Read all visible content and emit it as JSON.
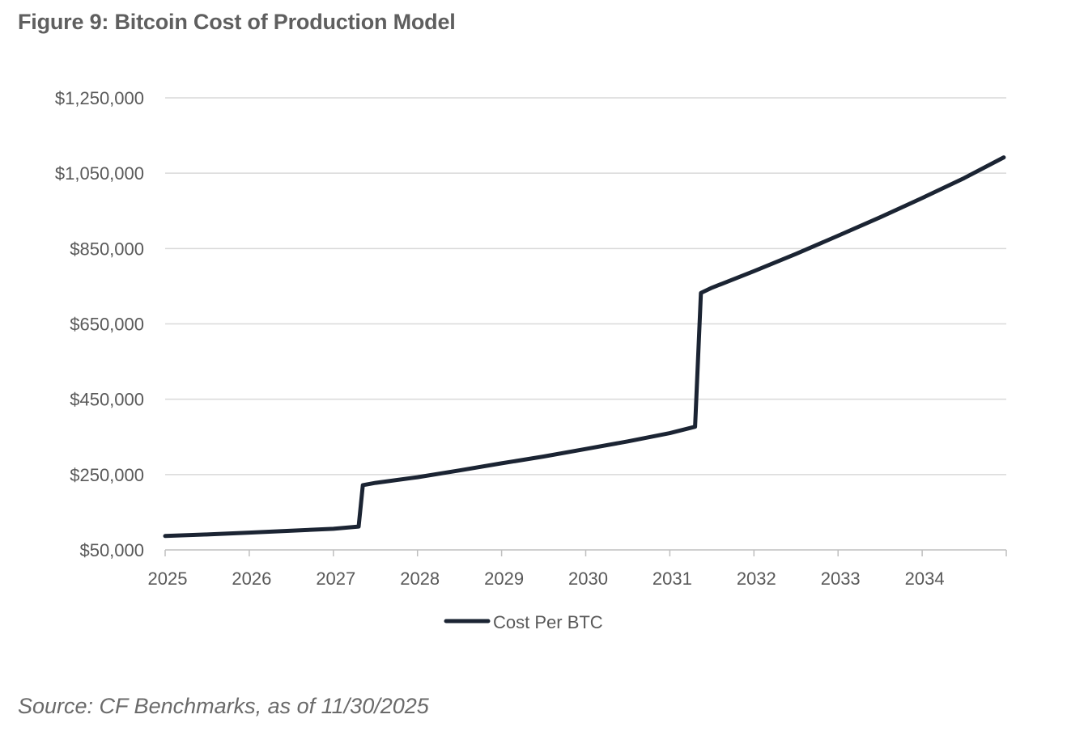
{
  "figure_title": "Figure 9: Bitcoin Cost of Production Model",
  "source": "Source: CF Benchmarks, as of 11/30/2025",
  "colors": {
    "line": "#1b2433",
    "grid": "#d9d9d9",
    "axis": "#bfbfbf",
    "title": "#5f5f5f",
    "text": "#595959"
  },
  "chart_data": {
    "type": "line",
    "title": "Figure 9: Bitcoin Cost of Production Model",
    "xlabel": "",
    "ylabel": "",
    "xlim": [
      2025,
      2035
    ],
    "ylim": [
      50000,
      1250000
    ],
    "y_ticks": [
      50000,
      250000,
      450000,
      650000,
      850000,
      1050000,
      1250000
    ],
    "y_tick_labels": [
      "$50,000",
      "$250,000",
      "$450,000",
      "$650,000",
      "$850,000",
      "$1,050,000",
      "$1,250,000"
    ],
    "x_ticks": [
      2025,
      2026,
      2027,
      2028,
      2029,
      2030,
      2031,
      2032,
      2033,
      2034
    ],
    "x_tick_labels": [
      "2025",
      "2026",
      "2027",
      "2028",
      "2029",
      "2030",
      "2031",
      "2032",
      "2033",
      "2034"
    ],
    "grid": "horizontal",
    "legend_position": "bottom-center",
    "series": [
      {
        "name": "Cost Per BTC",
        "x": [
          2025.0,
          2025.5,
          2026.0,
          2026.5,
          2027.0,
          2027.3,
          2027.35,
          2027.5,
          2028.0,
          2028.5,
          2029.0,
          2029.5,
          2030.0,
          2030.5,
          2031.0,
          2031.3,
          2031.37,
          2031.5,
          2032.0,
          2032.5,
          2033.0,
          2033.5,
          2034.0,
          2034.5,
          2034.97
        ],
        "values": [
          87000,
          91000,
          96000,
          101000,
          106000,
          112000,
          222000,
          228000,
          243000,
          261000,
          280000,
          298000,
          318000,
          338000,
          360000,
          377000,
          732000,
          746000,
          790000,
          836000,
          884000,
          933000,
          984000,
          1037000,
          1092000
        ]
      }
    ]
  }
}
